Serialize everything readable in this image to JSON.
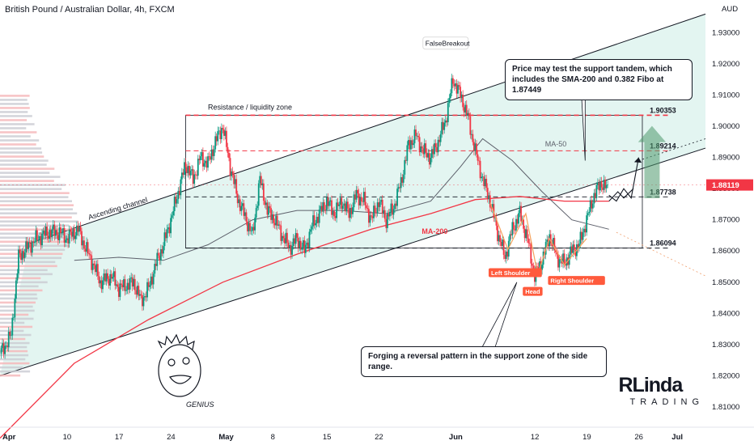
{
  "header": {
    "title": "British Pound / Australian Dollar, 4h, FXCM"
  },
  "chart_data": {
    "type": "candlestick",
    "currency": "AUD",
    "x_ticks": [
      {
        "label": "Apr",
        "day": 0
      },
      {
        "label": "10",
        "day": 9
      },
      {
        "label": "17",
        "day": 16
      },
      {
        "label": "24",
        "day": 23
      },
      {
        "label": "May",
        "day": 30
      },
      {
        "label": "8",
        "day": 37
      },
      {
        "label": "15",
        "day": 44
      },
      {
        "label": "22",
        "day": 51
      },
      {
        "label": "Jun",
        "day": 61
      },
      {
        "label": "12",
        "day": 72
      },
      {
        "label": "19",
        "day": 79
      },
      {
        "label": "26",
        "day": 86
      },
      {
        "label": "Jul",
        "day": 91
      }
    ],
    "y_ticks": [
      "1.93000",
      "1.92000",
      "1.91000",
      "1.90000",
      "1.89000",
      "1.88000",
      "1.87000",
      "1.86000",
      "1.85000",
      "1.84000",
      "1.83000",
      "1.82000",
      "1.81000"
    ],
    "ylim": [
      1.8035,
      1.9405
    ],
    "xlim_days": [
      0,
      95
    ],
    "current_price": "1.88119",
    "levels": [
      {
        "label": "1.90353",
        "value": 1.90353,
        "style": "dashed-red"
      },
      {
        "label": "1.89214",
        "value": 1.89214,
        "style": "dashed-red-thin"
      },
      {
        "label": "1.87738",
        "value": 1.87738,
        "style": "dashed-dark"
      },
      {
        "label": "1.86094",
        "value": 1.86094,
        "style": "dashed-dark"
      }
    ],
    "price_path": [
      [
        0,
        1.827
      ],
      [
        1.5,
        1.833
      ],
      [
        2.5,
        1.858
      ],
      [
        4,
        1.862
      ],
      [
        5,
        1.864
      ],
      [
        6.5,
        1.866
      ],
      [
        8,
        1.866
      ],
      [
        9,
        1.864
      ],
      [
        10.5,
        1.867
      ],
      [
        11.5,
        1.861
      ],
      [
        12.5,
        1.856
      ],
      [
        13.5,
        1.85
      ],
      [
        15,
        1.852
      ],
      [
        16,
        1.848
      ],
      [
        18,
        1.85
      ],
      [
        19,
        1.844
      ],
      [
        20,
        1.848
      ],
      [
        21,
        1.856
      ],
      [
        22,
        1.862
      ],
      [
        23,
        1.87
      ],
      [
        24,
        1.879
      ],
      [
        25,
        1.888
      ],
      [
        26,
        1.883
      ],
      [
        27,
        1.89
      ],
      [
        28,
        1.888
      ],
      [
        29,
        1.895
      ],
      [
        30,
        1.9
      ],
      [
        31,
        1.887
      ],
      [
        32,
        1.877
      ],
      [
        33,
        1.871
      ],
      [
        34,
        1.865
      ],
      [
        35,
        1.883
      ],
      [
        36,
        1.873
      ],
      [
        37,
        1.87
      ],
      [
        38,
        1.865
      ],
      [
        39,
        1.861
      ],
      [
        40,
        1.864
      ],
      [
        41,
        1.86
      ],
      [
        42,
        1.868
      ],
      [
        43,
        1.872
      ],
      [
        44,
        1.876
      ],
      [
        45,
        1.872
      ],
      [
        46,
        1.876
      ],
      [
        47,
        1.872
      ],
      [
        48,
        1.878
      ],
      [
        49,
        1.876
      ],
      [
        50,
        1.87
      ],
      [
        51,
        1.876
      ],
      [
        52,
        1.87
      ],
      [
        53,
        1.874
      ],
      [
        54,
        1.882
      ],
      [
        55,
        1.894
      ],
      [
        56,
        1.897
      ],
      [
        57,
        1.892
      ],
      [
        58,
        1.89
      ],
      [
        59,
        1.895
      ],
      [
        60,
        1.902
      ],
      [
        61,
        1.915
      ],
      [
        62,
        1.91
      ],
      [
        63,
        1.903
      ],
      [
        64,
        1.892
      ],
      [
        65,
        1.883
      ],
      [
        66,
        1.876
      ],
      [
        67,
        1.866
      ],
      [
        68,
        1.858
      ],
      [
        69,
        1.867
      ],
      [
        70,
        1.872
      ],
      [
        71,
        1.864
      ],
      [
        72,
        1.852
      ],
      [
        73,
        1.857
      ],
      [
        74,
        1.865
      ],
      [
        75,
        1.858
      ],
      [
        76,
        1.856
      ],
      [
        77,
        1.86
      ],
      [
        78,
        1.862
      ],
      [
        79,
        1.87
      ],
      [
        80,
        1.878
      ],
      [
        81,
        1.882
      ],
      [
        82,
        1.879
      ]
    ],
    "ma50": [
      [
        10,
        1.857
      ],
      [
        16,
        1.858
      ],
      [
        22,
        1.857
      ],
      [
        28,
        1.862
      ],
      [
        34,
        1.87
      ],
      [
        40,
        1.873
      ],
      [
        46,
        1.873
      ],
      [
        52,
        1.872
      ],
      [
        58,
        1.876
      ],
      [
        62,
        1.887
      ],
      [
        65,
        1.896
      ],
      [
        69,
        1.889
      ],
      [
        73,
        1.879
      ],
      [
        77,
        1.87
      ],
      [
        82,
        1.867
      ]
    ],
    "ma200": [
      [
        0,
        1.8
      ],
      [
        10,
        1.824
      ],
      [
        20,
        1.838
      ],
      [
        30,
        1.85
      ],
      [
        40,
        1.859
      ],
      [
        50,
        1.867
      ],
      [
        58,
        1.872
      ],
      [
        64,
        1.8765
      ],
      [
        70,
        1.8775
      ],
      [
        76,
        1.876
      ],
      [
        82,
        1.876
      ]
    ],
    "projection": [
      [
        82,
        1.8779
      ],
      [
        83,
        1.876
      ],
      [
        84,
        1.88
      ],
      [
        85,
        1.877
      ],
      [
        86,
        1.89
      ]
    ],
    "projection2": [
      [
        82,
        1.876
      ],
      [
        83.2,
        1.879
      ],
      [
        84,
        1.877
      ],
      [
        85.3,
        1.88
      ]
    ],
    "channel_top": [
      [
        4,
        1.8625
      ],
      [
        95,
        1.936
      ]
    ],
    "channel_bottom": [
      [
        0,
        1.82
      ],
      [
        95,
        1.893
      ]
    ],
    "annotations": {
      "ascending_channel": "Ascending channel",
      "resistance_zone": "Resistance / liquidity zone",
      "false_breakout": "FalseBreakout",
      "ma50_label": "MA-50",
      "ma200_label": "MA-200",
      "left_shoulder": "Left Shoulder",
      "head": "Head",
      "right_shoulder": "Right Shoulder",
      "genius": "GENIUS"
    }
  },
  "callouts": {
    "top": "Price may test the support tandem, which includes the SMA-200 and 0.382 Fibo at 1.87449",
    "bottom": "Forging a reversal pattern in the support zone of the side range."
  },
  "branding": {
    "line1": "RLinda",
    "line2": "TRADING"
  },
  "colors": {
    "bull": "#089981",
    "bear": "#f23645",
    "ma200": "#f23645",
    "ma50": "#5d606b",
    "channel_fill": "#d9f2ec",
    "grid_text": "#131722",
    "label_red": "#ff5a3c",
    "arrow_green": "#4f9a6e"
  }
}
